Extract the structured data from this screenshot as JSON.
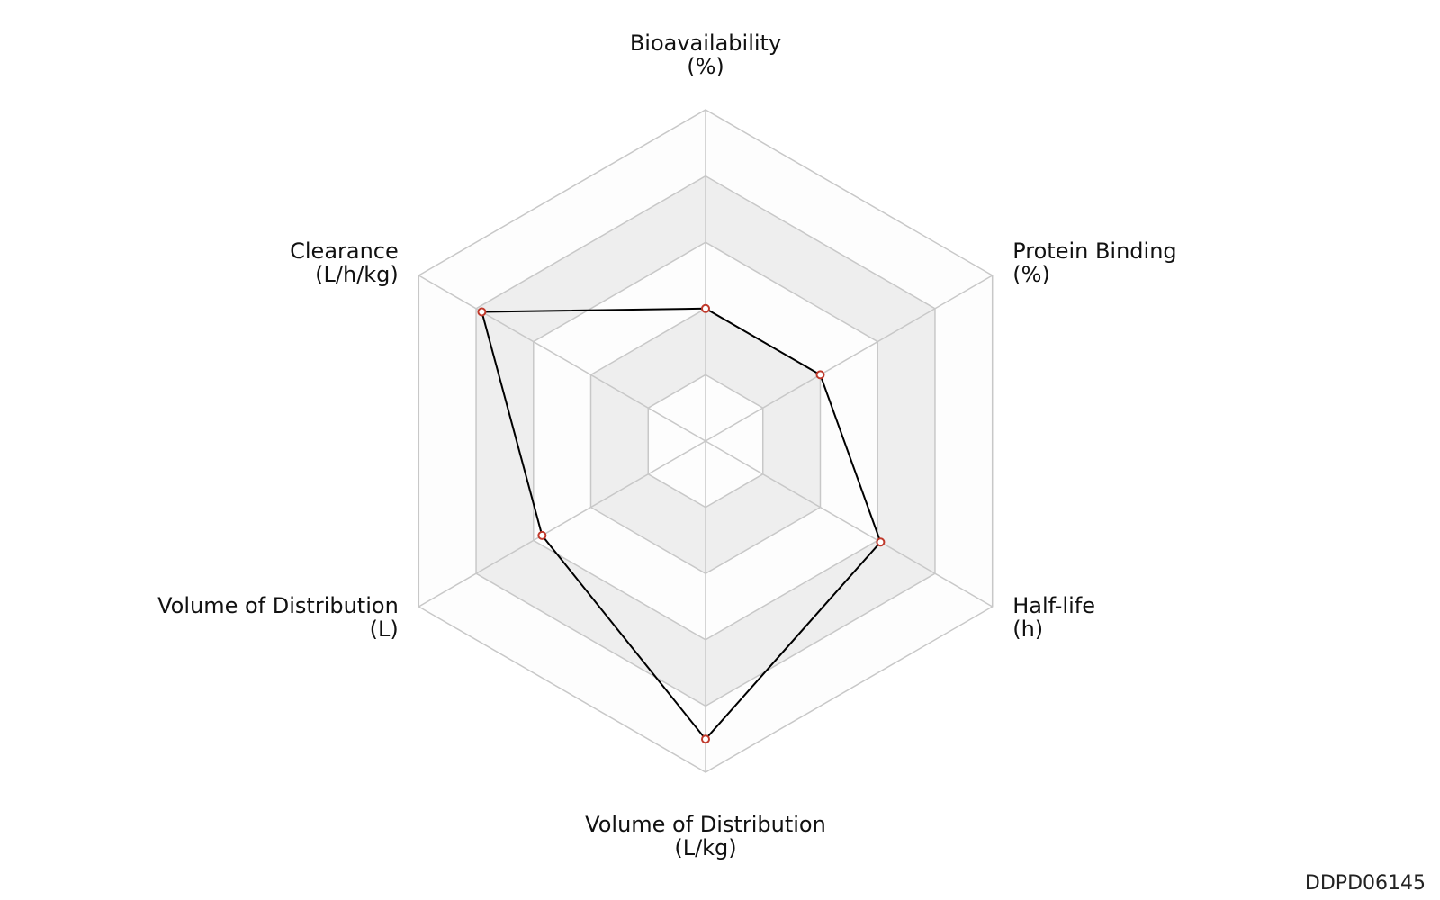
{
  "chart_data": {
    "type": "radar",
    "title": "",
    "axes": [
      {
        "line1": "Bioavailability",
        "line2": "(%)"
      },
      {
        "line1": "Protein Binding",
        "line2": "(%)"
      },
      {
        "line1": "Half-life",
        "line2": "(h)"
      },
      {
        "line1": "Volume of Distribution",
        "line2": "(L/kg)"
      },
      {
        "line1": "Volume of Distribution",
        "line2": "(L)"
      },
      {
        "line1": "Clearance",
        "line2": "(L/h/kg)"
      }
    ],
    "rings": 5,
    "range": [
      0,
      1
    ],
    "series": [
      {
        "values": [
          0.4,
          0.4,
          0.61,
          0.9,
          0.57,
          0.78
        ],
        "line_color": "#000000",
        "marker_color": "#c0392b"
      }
    ],
    "band_colors": [
      "#fdfdfd",
      "#eeeeee"
    ],
    "grid_color": "#c8c8c8"
  },
  "watermark": "DDPD06145"
}
